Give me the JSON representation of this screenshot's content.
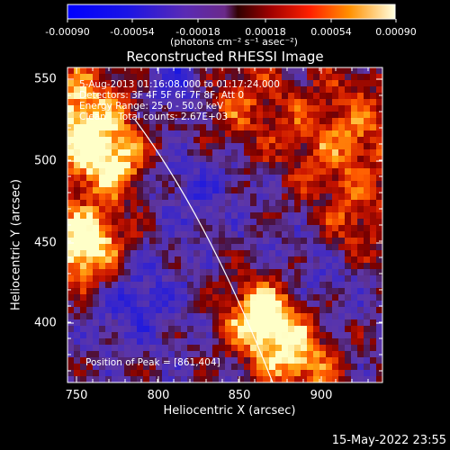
{
  "colorbar": {
    "ticks": [
      "-0.00090",
      "-0.00054",
      "-0.00018",
      "0.00018",
      "0.00054",
      "0.00090"
    ],
    "units": "(photons cm⁻² s⁻¹ asec⁻²)"
  },
  "title": "Reconstructed RHESSI Image",
  "annotation": {
    "time_range": "5-Aug-2013 01:16:08.000 to 01:17:24.000",
    "detectors": "Detectors: 3F 4F 5F 6F 7F 8F, Att 0",
    "energy": "Energy Range: 25.0 - 50.0 keV",
    "clean": "Clean    Total counts: 2.67E+03"
  },
  "peak_label": "Position of Peak = [861,404]",
  "xaxis": {
    "label": "Heliocentric X (arcsec)",
    "ticks": [
      "750",
      "800",
      "850",
      "900"
    ],
    "range": [
      743,
      936
    ]
  },
  "yaxis": {
    "label": "Heliocentric Y (arcsec)",
    "ticks": [
      "400",
      "450",
      "500",
      "550"
    ],
    "range": [
      360,
      558
    ]
  },
  "footer_date": "15-May-2022 23:55",
  "colors": {
    "background": "#000000",
    "text": "#ffffff"
  }
}
